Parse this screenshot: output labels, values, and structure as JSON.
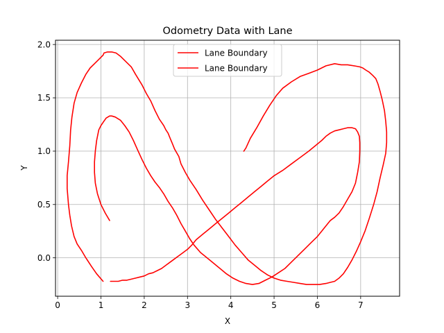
{
  "chart_data": {
    "type": "line",
    "title": "Odometry Data with Lane",
    "xlabel": "X",
    "ylabel": "Y",
    "xlim": [
      -0.05,
      7.9
    ],
    "ylim": [
      -0.36,
      2.04
    ],
    "xticks": [
      0,
      1,
      2,
      3,
      4,
      5,
      6,
      7
    ],
    "xtick_labels": [
      "0",
      "1",
      "2",
      "3",
      "4",
      "5",
      "6",
      "7"
    ],
    "yticks": [
      0.0,
      0.5,
      1.0,
      1.5,
      2.0
    ],
    "ytick_labels": [
      "0.0",
      "0.5",
      "1.0",
      "1.5",
      "2.0"
    ],
    "grid": true,
    "legend": "upper center",
    "series": [
      {
        "name": "Lane Boundary",
        "color": "#ff0000",
        "x": [
          1.05,
          0.9,
          0.78,
          0.65,
          0.55,
          0.45,
          0.38,
          0.32,
          0.28,
          0.25,
          0.22,
          0.22,
          0.25,
          0.28,
          0.3,
          0.33,
          0.38,
          0.45,
          0.55,
          0.65,
          0.75,
          0.85,
          0.95,
          1.0,
          1.05,
          1.07,
          1.15,
          1.25,
          1.35,
          1.45,
          1.55,
          1.7,
          1.8,
          1.95,
          2.05,
          2.15,
          2.25,
          2.35,
          2.4,
          2.45,
          2.5,
          2.55,
          2.6,
          2.65,
          2.7,
          2.8,
          2.85,
          2.95,
          3.05,
          3.2,
          3.35,
          3.5,
          3.65,
          3.8,
          3.95,
          4.1,
          4.25,
          4.4,
          4.55,
          4.7,
          4.85,
          5.0,
          5.15,
          5.3,
          5.45,
          5.6,
          5.75,
          5.9,
          6.05,
          6.2,
          6.3,
          6.4,
          6.5,
          6.6,
          6.7,
          6.8,
          6.9,
          7.0,
          7.1,
          7.2,
          7.3,
          7.38,
          7.45,
          7.52,
          7.58,
          7.6,
          7.6,
          7.58,
          7.55,
          7.5,
          7.45,
          7.4,
          7.35,
          7.28,
          7.2,
          7.12,
          7.05,
          6.98,
          6.85,
          6.7,
          6.55,
          6.4,
          6.2,
          6.0,
          5.8,
          5.6,
          5.4,
          5.2,
          5.05,
          4.9,
          4.75,
          4.6,
          4.45,
          4.35,
          4.3
        ],
        "y": [
          -0.22,
          -0.15,
          -0.08,
          0.0,
          0.07,
          0.13,
          0.2,
          0.3,
          0.4,
          0.5,
          0.65,
          0.77,
          0.9,
          1.05,
          1.2,
          1.32,
          1.45,
          1.55,
          1.64,
          1.72,
          1.78,
          1.82,
          1.86,
          1.88,
          1.9,
          1.92,
          1.93,
          1.93,
          1.92,
          1.89,
          1.85,
          1.79,
          1.72,
          1.62,
          1.54,
          1.47,
          1.38,
          1.3,
          1.27,
          1.24,
          1.2,
          1.17,
          1.12,
          1.07,
          1.02,
          0.95,
          0.88,
          0.8,
          0.73,
          0.64,
          0.54,
          0.45,
          0.36,
          0.28,
          0.2,
          0.12,
          0.05,
          -0.02,
          -0.07,
          -0.12,
          -0.16,
          -0.19,
          -0.21,
          -0.22,
          -0.23,
          -0.24,
          -0.25,
          -0.25,
          -0.25,
          -0.24,
          -0.23,
          -0.22,
          -0.19,
          -0.15,
          -0.09,
          -0.02,
          0.06,
          0.15,
          0.25,
          0.37,
          0.5,
          0.62,
          0.75,
          0.87,
          0.98,
          1.08,
          1.18,
          1.28,
          1.38,
          1.48,
          1.56,
          1.63,
          1.68,
          1.71,
          1.74,
          1.76,
          1.78,
          1.79,
          1.8,
          1.81,
          1.81,
          1.82,
          1.8,
          1.76,
          1.73,
          1.7,
          1.65,
          1.59,
          1.52,
          1.43,
          1.33,
          1.22,
          1.12,
          1.03,
          1.0
        ]
      },
      {
        "name": "Lane Boundary",
        "color": "#ff0000",
        "x": [
          1.2,
          1.1,
          1.0,
          0.92,
          0.87,
          0.85,
          0.85,
          0.87,
          0.9,
          0.95,
          1.0,
          1.05,
          1.12,
          1.2,
          1.25,
          1.33,
          1.45,
          1.55,
          1.65,
          1.75,
          1.85,
          1.95,
          2.05,
          2.15,
          2.25,
          2.35,
          2.45,
          2.55,
          2.65,
          2.75,
          2.85,
          2.95,
          3.05,
          3.15,
          3.3,
          3.45,
          3.6,
          3.75,
          3.9,
          4.05,
          4.2,
          4.35,
          4.5,
          4.65,
          4.8,
          4.95,
          5.1,
          5.25,
          5.4,
          5.55,
          5.7,
          5.85,
          6.0,
          6.1,
          6.2,
          6.3,
          6.4,
          6.5,
          6.6,
          6.7,
          6.8,
          6.88,
          6.93,
          6.97,
          6.98,
          6.98,
          6.97,
          6.93,
          6.88,
          6.8,
          6.7,
          6.6,
          6.5,
          6.4,
          6.3,
          6.2,
          6.1,
          5.95,
          5.8,
          5.6,
          5.4,
          5.2,
          5.0,
          4.85,
          4.7,
          4.55,
          4.4,
          4.25,
          4.1,
          3.95,
          3.8,
          3.65,
          3.5,
          3.35,
          3.2,
          3.1,
          3.0,
          2.9,
          2.8,
          2.7,
          2.6,
          2.5,
          2.4,
          2.3,
          2.2,
          2.1,
          2.0,
          1.9,
          1.8,
          1.7,
          1.6,
          1.5,
          1.4,
          1.3,
          1.22
        ],
        "y": [
          0.35,
          0.42,
          0.5,
          0.6,
          0.7,
          0.8,
          0.9,
          1.0,
          1.1,
          1.2,
          1.24,
          1.27,
          1.31,
          1.33,
          1.33,
          1.32,
          1.29,
          1.24,
          1.18,
          1.1,
          1.01,
          0.92,
          0.84,
          0.77,
          0.71,
          0.66,
          0.6,
          0.53,
          0.47,
          0.4,
          0.32,
          0.25,
          0.18,
          0.12,
          0.05,
          0.0,
          -0.05,
          -0.1,
          -0.15,
          -0.19,
          -0.22,
          -0.24,
          -0.25,
          -0.24,
          -0.21,
          -0.18,
          -0.14,
          -0.1,
          -0.04,
          0.02,
          0.08,
          0.14,
          0.2,
          0.25,
          0.3,
          0.35,
          0.38,
          0.42,
          0.48,
          0.55,
          0.62,
          0.7,
          0.8,
          0.9,
          1.0,
          1.08,
          1.14,
          1.18,
          1.21,
          1.22,
          1.22,
          1.21,
          1.2,
          1.19,
          1.17,
          1.14,
          1.1,
          1.05,
          1.0,
          0.94,
          0.88,
          0.82,
          0.77,
          0.72,
          0.67,
          0.62,
          0.57,
          0.52,
          0.47,
          0.42,
          0.37,
          0.32,
          0.27,
          0.22,
          0.17,
          0.12,
          0.08,
          0.05,
          0.02,
          -0.01,
          -0.04,
          -0.07,
          -0.1,
          -0.12,
          -0.14,
          -0.15,
          -0.17,
          -0.18,
          -0.19,
          -0.2,
          -0.21,
          -0.21,
          -0.22,
          -0.22,
          -0.22
        ]
      }
    ]
  }
}
